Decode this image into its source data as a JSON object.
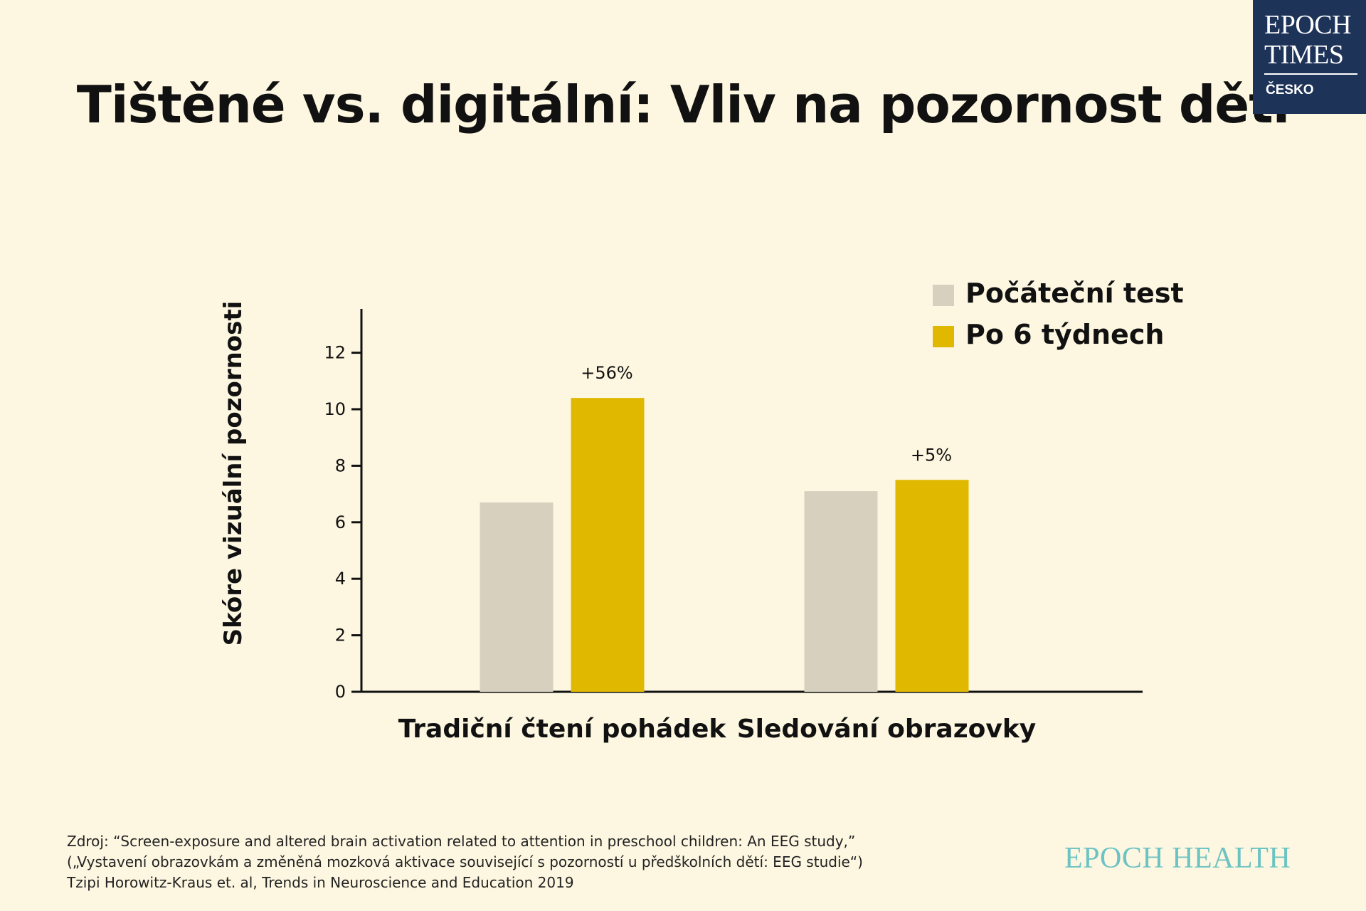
{
  "title": "Tištěné vs. digitální: Vliv na pozornost dětí",
  "logo": {
    "line1": "EPOCH",
    "line2": "TIMES",
    "line3": "ČESKO"
  },
  "colors": {
    "background": "#fdf7e1",
    "baseline": "#d8d0bf",
    "after": "#e0b800",
    "logo_bg": "#1e3358",
    "brand": "#6cc3c3"
  },
  "chart_data": {
    "type": "bar",
    "categories": [
      "Tradiční čtení pohádek",
      "Sledování obrazovky"
    ],
    "series": [
      {
        "name": "Počáteční test",
        "values": [
          6.7,
          7.1
        ],
        "color": "#d8d0bf"
      },
      {
        "name": "Po 6 týdnech",
        "values": [
          10.4,
          7.5
        ],
        "color": "#e0b800"
      }
    ],
    "annotations": [
      "+56%",
      "+5%"
    ],
    "ylabel": "Skóre vizuální pozornosti",
    "yticks": [
      0,
      2,
      4,
      6,
      8,
      10,
      12
    ],
    "ylim": [
      0,
      13.5
    ],
    "grid": false,
    "legend": "top-right"
  },
  "source": {
    "line1": "Zdroj: “Screen-exposure and altered brain activation related to attention in preschool children: An EEG study,”",
    "line2": "(„Vystavení obrazovkám a změněná mozková aktivace související s pozorností u předškolních dětí: EEG studie“)",
    "line3": "Tzipi Horowitz-Kraus et. al, Trends in Neuroscience and Education 2019"
  },
  "brand": "EPOCH HEALTH"
}
